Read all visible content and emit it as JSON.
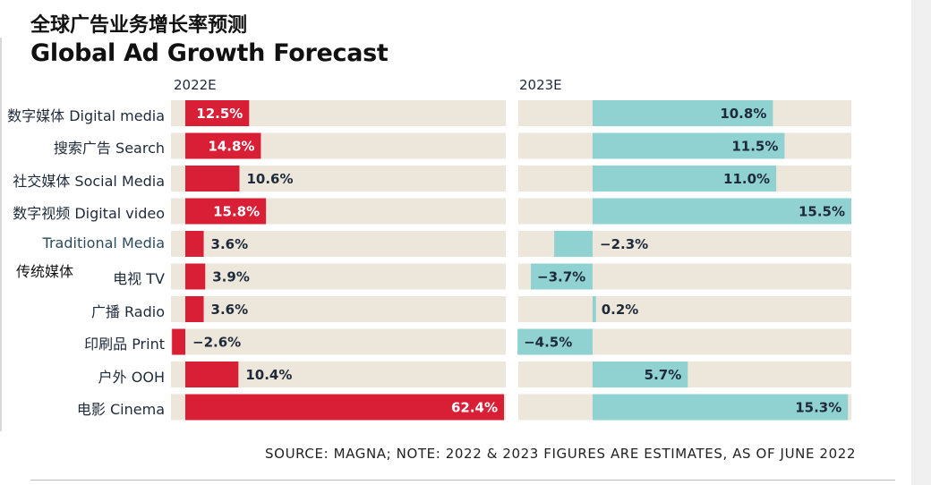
{
  "title_cn": "全球广告业务增长率预测",
  "title_en": "Global Ad Growth Forecast",
  "source": "SOURCE: MAGNA; NOTE: 2022 & 2023 FIGURES ARE ESTIMATES, AS OF JUNE 2022",
  "group_label": "传统媒体",
  "colors": {
    "bar_2022": "#d81f36",
    "bar_2023": "#8fd2d1",
    "track": "#ede6db",
    "text_dark": "#1e2a3a",
    "text_on_bar": "#ffffff"
  },
  "chart_data": {
    "type": "bar",
    "orientation": "horizontal",
    "categories": [
      {
        "cn": "数字媒体",
        "en": "Digital media"
      },
      {
        "cn": "搜索广告",
        "en": "Search"
      },
      {
        "cn": "社交媒体",
        "en": "Social Media"
      },
      {
        "cn": "数字视频",
        "en": "Digital video"
      },
      {
        "cn": "",
        "en": "Traditional Media"
      },
      {
        "cn": "电视",
        "en": "TV"
      },
      {
        "cn": "广播",
        "en": "Radio"
      },
      {
        "cn": "印刷品",
        "en": "Print"
      },
      {
        "cn": "户外",
        "en": "OOH"
      },
      {
        "cn": "电影",
        "en": "Cinema"
      }
    ],
    "series": [
      {
        "name": "2022E",
        "values": [
          12.5,
          14.8,
          10.6,
          15.8,
          3.6,
          3.9,
          3.6,
          -2.6,
          10.4,
          62.4
        ],
        "labels": [
          "12.5%",
          "14.8%",
          "10.6%",
          "15.8%",
          "3.6%",
          "3.9%",
          "3.6%",
          "−2.6%",
          "10.4%",
          "62.4%"
        ]
      },
      {
        "name": "2023E",
        "values": [
          10.8,
          11.5,
          11.0,
          15.5,
          -2.3,
          -3.7,
          0.2,
          -4.5,
          5.7,
          15.3
        ],
        "labels": [
          "10.8%",
          "11.5%",
          "11.0%",
          "15.5%",
          "−2.3%",
          "−3.7%",
          "0.2%",
          "−4.5%",
          "5.7%",
          "15.3%"
        ]
      }
    ]
  }
}
